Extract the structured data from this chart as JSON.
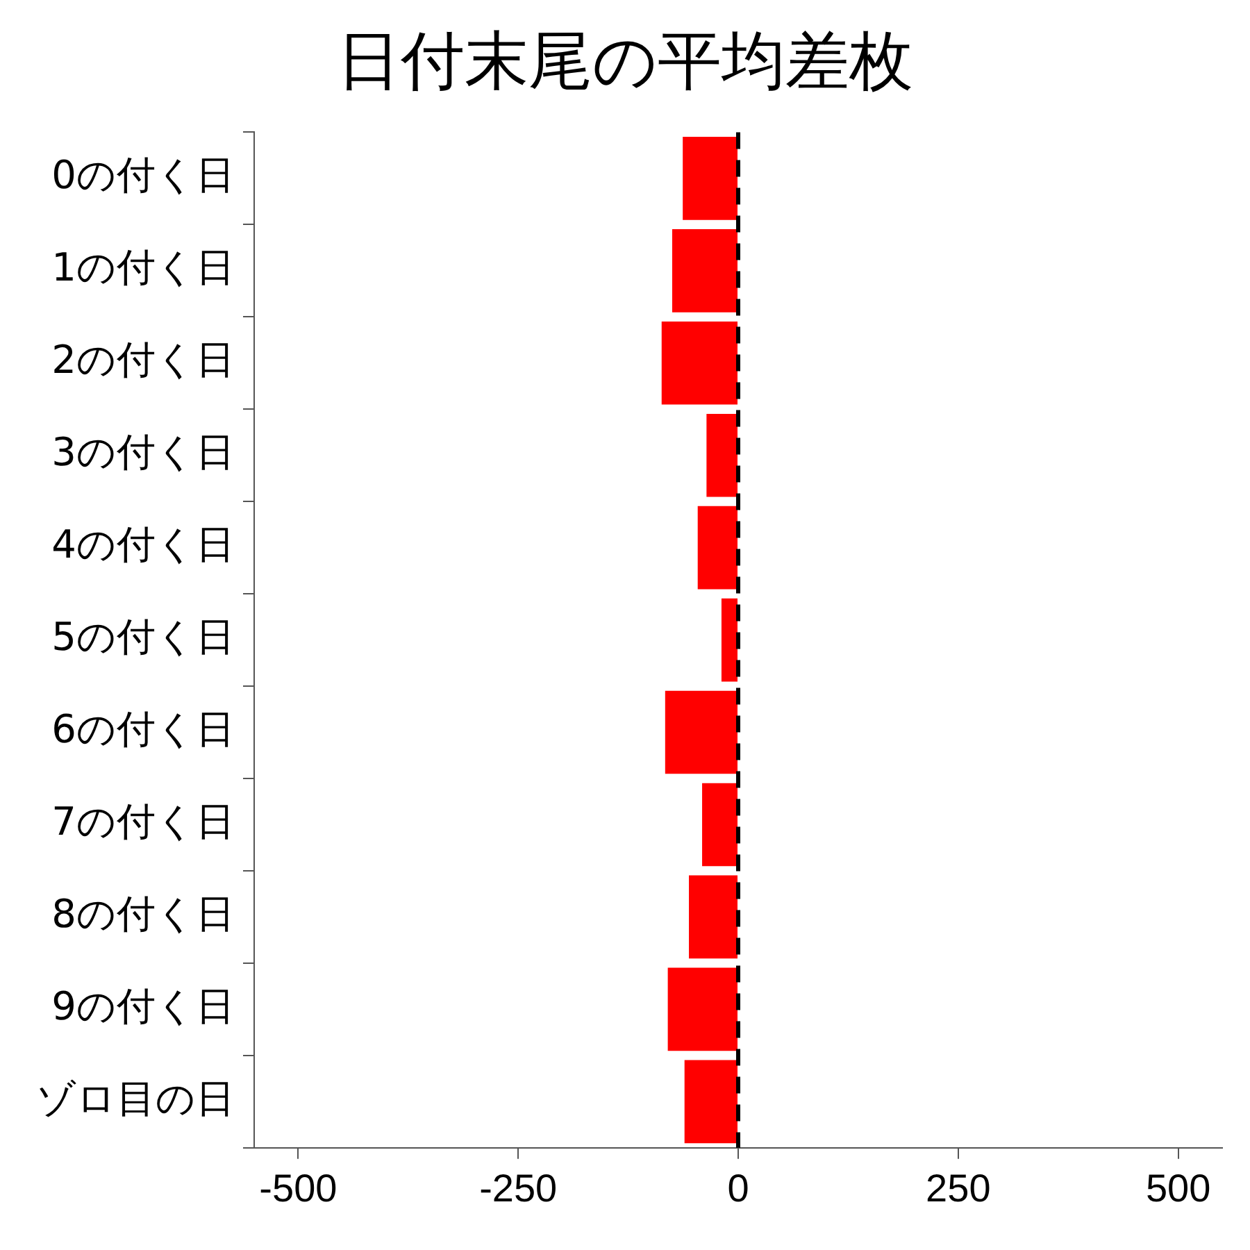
{
  "chart_data": {
    "type": "bar",
    "orientation": "horizontal",
    "title": "日付末尾の平均差枚",
    "categories": [
      "0の付く日",
      "1の付く日",
      "2の付く日",
      "3の付く日",
      "4の付く日",
      "5の付く日",
      "6の付く日",
      "7の付く日",
      "8の付く日",
      "9の付く日",
      "ゾロ目の日"
    ],
    "values": [
      -63,
      -75,
      -87,
      -36,
      -46,
      -19,
      -83,
      -41,
      -56,
      -80,
      -61
    ],
    "color": "#ff0000",
    "xlim": [
      -550,
      550
    ],
    "xticks": [
      -500,
      -250,
      0,
      250,
      500
    ],
    "grid": false,
    "legend": false,
    "ref_lines": [
      {
        "axis": "x",
        "value": 0,
        "color": "#000000",
        "line_style": "dashed"
      }
    ]
  }
}
